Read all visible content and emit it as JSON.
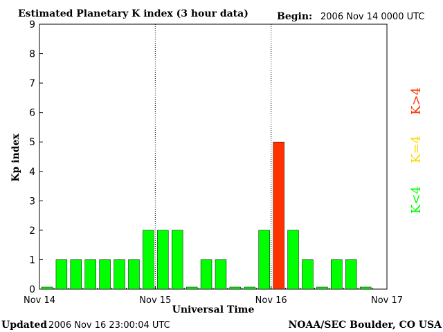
{
  "header": {
    "title": "Estimated Planetary K index (3 hour data)",
    "begin_label": "Begin:",
    "begin_value": "2006 Nov 14 0000 UTC"
  },
  "footer": {
    "updated_label": "Updated",
    "updated_value": "2006 Nov 16 23:00:04 UTC",
    "source": "NOAA/SEC Boulder, CO USA"
  },
  "legend": {
    "items": [
      {
        "label": "K<4",
        "color": "#00ff00"
      },
      {
        "label": "K=4",
        "color": "#ffd700"
      },
      {
        "label": "K>4",
        "color": "#ff3300"
      }
    ]
  },
  "chart_data": {
    "type": "bar",
    "title": "Estimated Planetary K index (3 hour data)",
    "xlabel": "Universal Time",
    "ylabel": "Kp index",
    "ylim": [
      0,
      9
    ],
    "yticks": [
      0,
      1,
      2,
      3,
      4,
      5,
      6,
      7,
      8,
      9
    ],
    "xticks": [
      "Nov 14",
      "Nov 15",
      "Nov 16",
      "Nov 17"
    ],
    "bars_per_day": 8,
    "day_separators": [
      "Nov 15",
      "Nov 16"
    ],
    "grid": false,
    "values": [
      0,
      1,
      1,
      1,
      1,
      1,
      1,
      2,
      2,
      2,
      0,
      1,
      1,
      0,
      0,
      2,
      5,
      2,
      1,
      0,
      1,
      1,
      0
    ],
    "colors": {
      "low": "#00ff00",
      "equal4": "#ffd700",
      "high": "#ff3300"
    }
  }
}
